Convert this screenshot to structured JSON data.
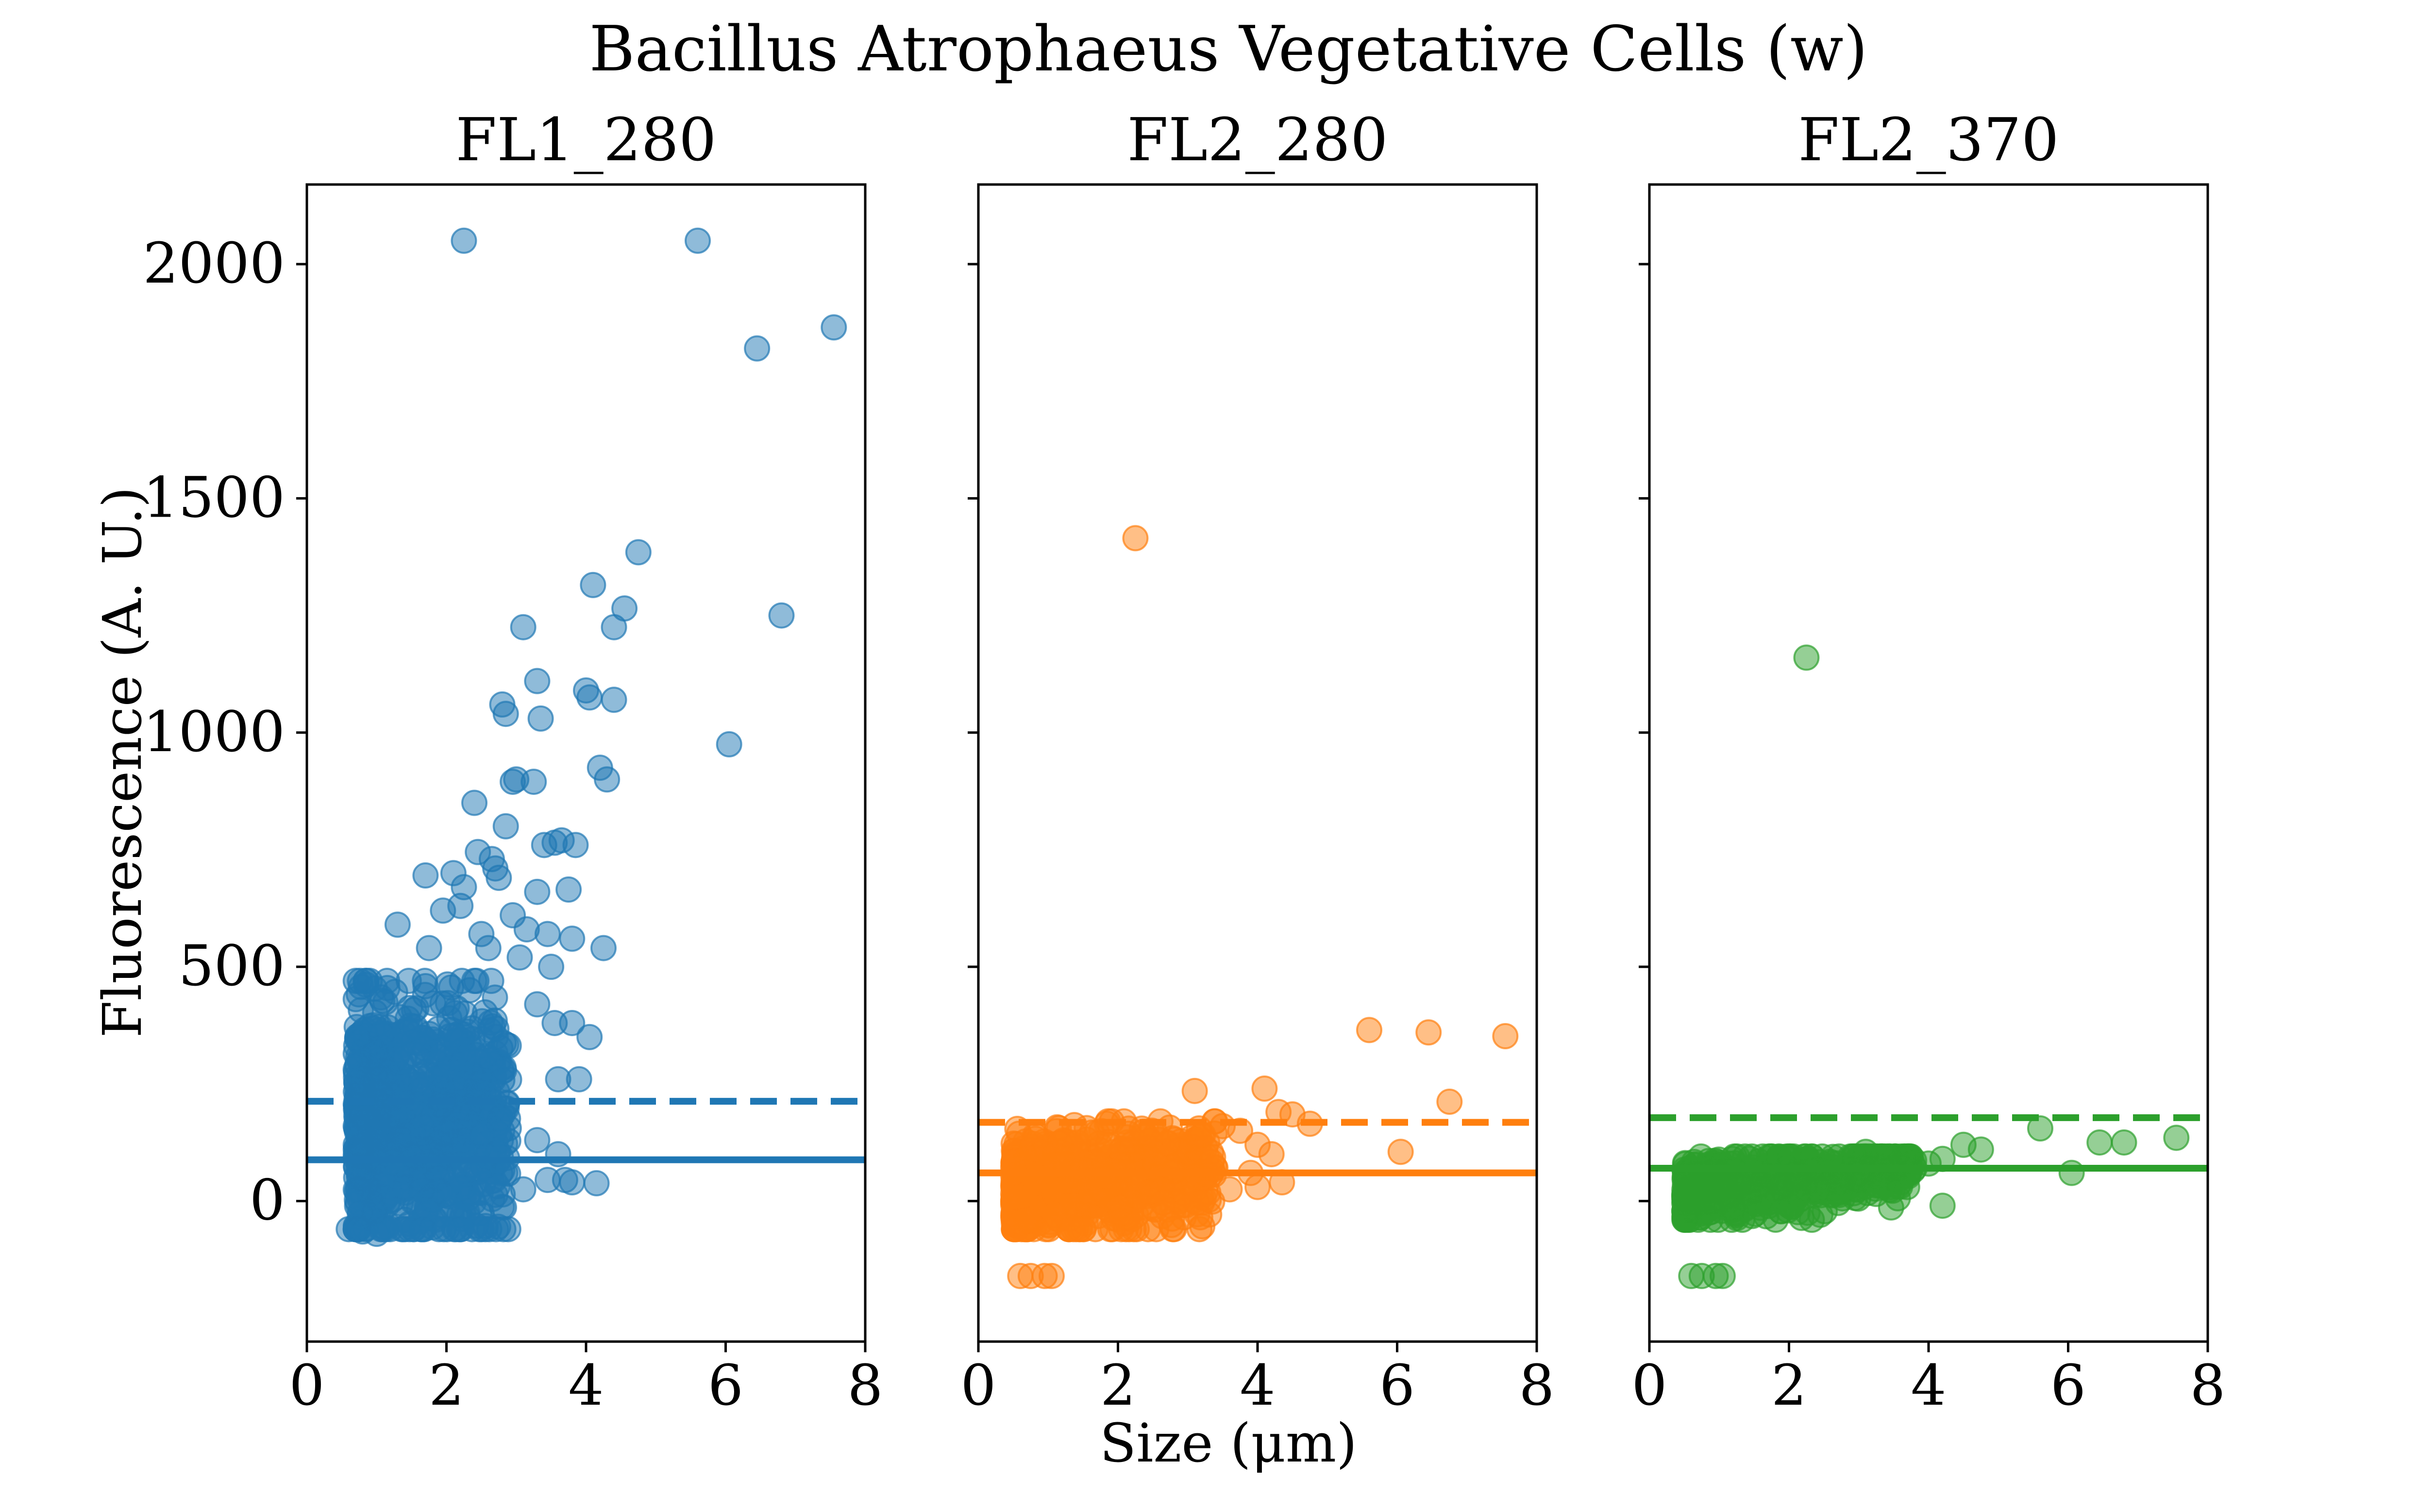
{
  "figure": {
    "suptitle": "Bacillus Atrophaeus Vegetative Cells (w)",
    "xlabel": "Size (μm)",
    "ylabel": "Fluorescence (A. U.)"
  },
  "chart_data": [
    {
      "type": "scatter",
      "title": "FL1_280",
      "color": "#1f77b4",
      "xlim": [
        0,
        8
      ],
      "ylim": [
        -300,
        2170
      ],
      "xticks": [
        "0",
        "2",
        "4",
        "6",
        "8"
      ],
      "yticks": [
        "0",
        "500",
        "1000",
        "1500",
        "2000"
      ],
      "ytick_values": [
        0,
        500,
        1000,
        1500,
        2000
      ],
      "threshold_solid": 88,
      "threshold_dashed": 213,
      "points": [
        [
          2.25,
          2050
        ],
        [
          5.6,
          2050
        ],
        [
          6.45,
          1820
        ],
        [
          7.55,
          1865
        ],
        [
          4.75,
          1385
        ],
        [
          4.55,
          1265
        ],
        [
          4.1,
          1315
        ],
        [
          4.4,
          1225
        ],
        [
          3.1,
          1225
        ],
        [
          6.8,
          1250
        ],
        [
          3.3,
          1110
        ],
        [
          4.0,
          1090
        ],
        [
          4.05,
          1075
        ],
        [
          4.4,
          1070
        ],
        [
          2.8,
          1060
        ],
        [
          2.85,
          1040
        ],
        [
          3.35,
          1030
        ],
        [
          4.2,
          925
        ],
        [
          6.05,
          975
        ],
        [
          4.3,
          900
        ],
        [
          3.0,
          900
        ],
        [
          2.95,
          895
        ],
        [
          3.25,
          895
        ],
        [
          2.4,
          850
        ],
        [
          2.85,
          800
        ],
        [
          3.65,
          770
        ],
        [
          3.55,
          765
        ],
        [
          3.85,
          760
        ],
        [
          3.4,
          760
        ],
        [
          2.45,
          745
        ],
        [
          2.65,
          730
        ],
        [
          2.7,
          710
        ],
        [
          2.1,
          700
        ],
        [
          1.7,
          695
        ],
        [
          2.25,
          670
        ],
        [
          2.75,
          690
        ],
        [
          3.75,
          665
        ],
        [
          3.3,
          660
        ],
        [
          2.95,
          610
        ],
        [
          1.95,
          620
        ],
        [
          2.2,
          630
        ],
        [
          3.15,
          580
        ],
        [
          3.45,
          570
        ],
        [
          3.8,
          560
        ],
        [
          4.25,
          540
        ],
        [
          2.5,
          570
        ],
        [
          2.6,
          540
        ],
        [
          3.05,
          520
        ],
        [
          1.3,
          590
        ],
        [
          1.75,
          540
        ],
        [
          3.5,
          500
        ],
        [
          3.3,
          420
        ],
        [
          3.55,
          380
        ],
        [
          3.8,
          380
        ],
        [
          4.05,
          350
        ],
        [
          3.9,
          260
        ],
        [
          3.6,
          260
        ],
        [
          3.3,
          130
        ],
        [
          3.6,
          100
        ],
        [
          3.45,
          45
        ],
        [
          3.7,
          45
        ],
        [
          3.1,
          25
        ],
        [
          3.8,
          40
        ],
        [
          4.15,
          38
        ],
        [
          0.6,
          -60
        ],
        [
          0.8,
          -65
        ],
        [
          1.0,
          -70
        ],
        [
          1.1,
          -55
        ],
        [
          1.4,
          -40
        ],
        [
          1.7,
          -30
        ]
      ],
      "cluster": {
        "x0": 0.7,
        "x1": 2.9,
        "yMin": -60,
        "yMax": 470,
        "center": 150,
        "count": 900
      }
    },
    {
      "type": "scatter",
      "title": "FL2_280",
      "color": "#ff7f0e",
      "xlim": [
        0,
        8
      ],
      "ylim": [
        -300,
        2170
      ],
      "xticks": [
        "0",
        "2",
        "4",
        "6",
        "8"
      ],
      "threshold_solid": 60,
      "threshold_dashed": 168,
      "points": [
        [
          2.25,
          1415
        ],
        [
          5.6,
          365
        ],
        [
          6.45,
          360
        ],
        [
          7.55,
          352
        ],
        [
          6.75,
          212
        ],
        [
          6.05,
          105
        ],
        [
          3.1,
          235
        ],
        [
          4.1,
          240
        ],
        [
          4.3,
          190
        ],
        [
          4.5,
          185
        ],
        [
          4.75,
          165
        ],
        [
          3.2,
          140
        ],
        [
          3.5,
          160
        ],
        [
          3.75,
          150
        ],
        [
          4.0,
          120
        ],
        [
          4.2,
          100
        ],
        [
          3.9,
          60
        ],
        [
          4.35,
          40
        ],
        [
          4.0,
          30
        ],
        [
          3.6,
          25
        ],
        [
          0.6,
          -160
        ],
        [
          0.75,
          -160
        ],
        [
          0.95,
          -160
        ],
        [
          1.05,
          -160
        ],
        [
          1.1,
          -30
        ],
        [
          1.4,
          -10
        ]
      ],
      "cluster": {
        "x0": 0.5,
        "x1": 3.4,
        "yMin": -60,
        "yMax": 170,
        "center": 20,
        "count": 700
      }
    },
    {
      "type": "scatter",
      "title": "FL2_370",
      "color": "#2ca02c",
      "xlim": [
        0,
        8
      ],
      "ylim": [
        -300,
        2170
      ],
      "xticks": [
        "0",
        "2",
        "4",
        "6",
        "8"
      ],
      "threshold_solid": 70,
      "threshold_dashed": 178,
      "points": [
        [
          2.25,
          1160
        ],
        [
          5.6,
          155
        ],
        [
          6.45,
          125
        ],
        [
          6.8,
          125
        ],
        [
          7.55,
          135
        ],
        [
          4.75,
          110
        ],
        [
          4.5,
          120
        ],
        [
          6.05,
          60
        ],
        [
          4.2,
          90
        ],
        [
          4.0,
          80
        ],
        [
          3.1,
          105
        ],
        [
          3.5,
          90
        ],
        [
          3.8,
          70
        ],
        [
          4.2,
          -10
        ],
        [
          3.6,
          40
        ],
        [
          0.6,
          -160
        ],
        [
          0.75,
          -160
        ],
        [
          0.95,
          -160
        ],
        [
          1.05,
          -160
        ]
      ],
      "cluster": {
        "x0": 0.5,
        "x1": 3.8,
        "yMin": -40,
        "yMax": 95,
        "center": 20,
        "count": 700
      }
    }
  ]
}
